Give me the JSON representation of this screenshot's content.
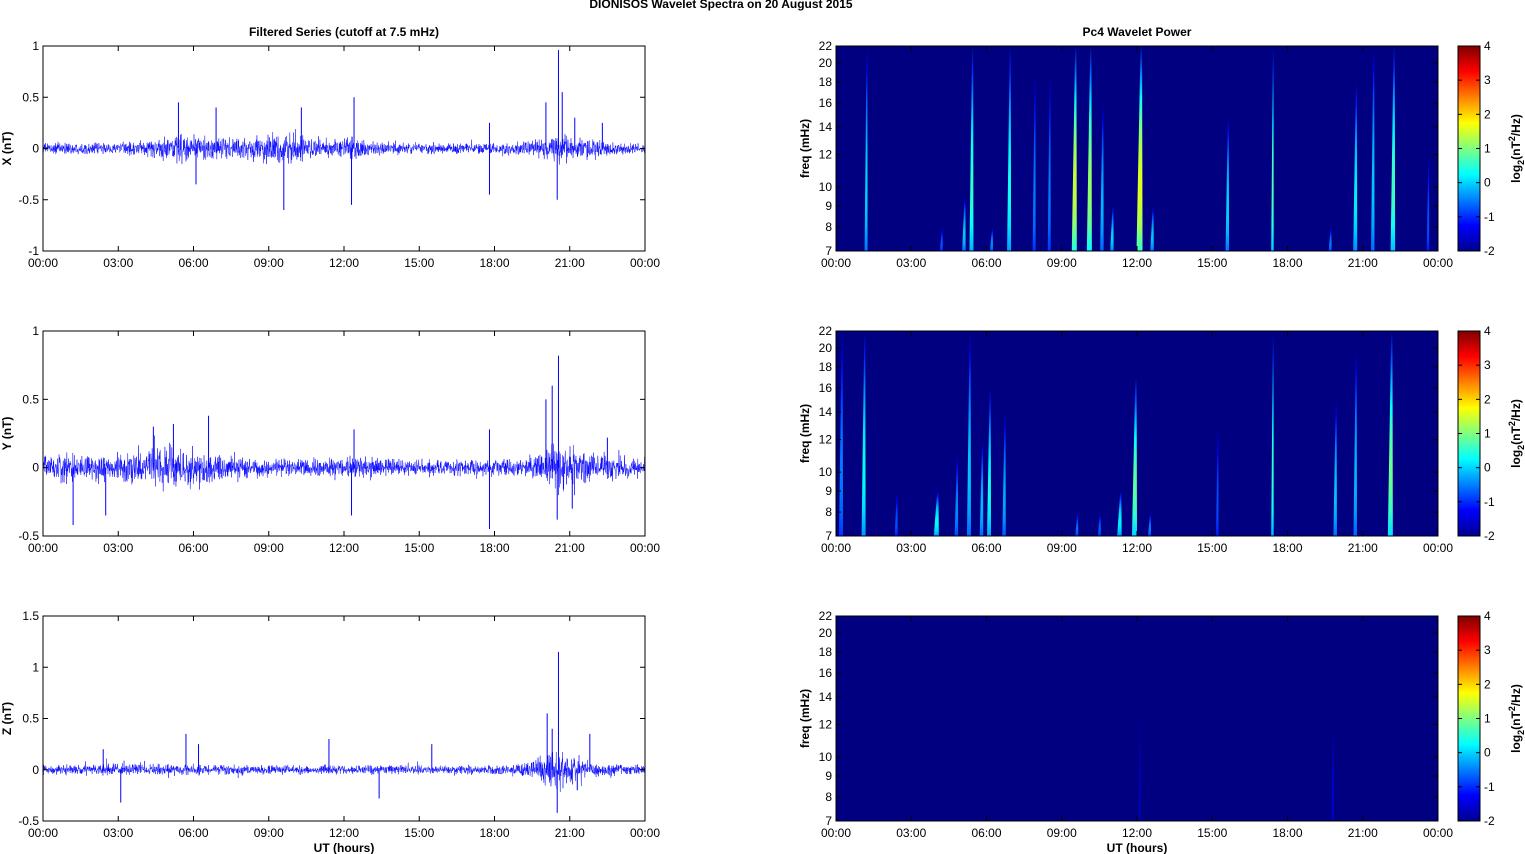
{
  "figure_title": "DIONISOS Wavelet Spectra on 20 August    2015",
  "left_title": "Filtered Series (cutoff at 7.5 mHz)",
  "right_title": "Pc4 Wavelet Power",
  "colors": {
    "trace": "#0000ff",
    "background": "#00008f",
    "axes": "#000000"
  },
  "chart_data": [
    {
      "type": "line",
      "panel": "X",
      "ylabel": "X (nT)",
      "xlabel": "",
      "xlim": [
        0,
        24
      ],
      "ylim": [
        -1,
        1
      ],
      "yticks": [
        -1,
        -0.5,
        0,
        0.5,
        1
      ],
      "yticklabels": [
        "-1",
        "-0.5",
        "0",
        "0.5",
        "1"
      ],
      "xticklabels": [
        "00:00",
        "03:00",
        "06:00",
        "09:00",
        "12:00",
        "15:00",
        "18:00",
        "21:00",
        "00:00"
      ],
      "noise_envelope": {
        "t": [
          0,
          1,
          2,
          3,
          4,
          4.8,
          6,
          7,
          8,
          9,
          10,
          11,
          12,
          12.5,
          13,
          15,
          17,
          18,
          19,
          20,
          20.5,
          21,
          22,
          23,
          24
        ],
        "amp": [
          0.07,
          0.08,
          0.07,
          0.08,
          0.09,
          0.18,
          0.22,
          0.16,
          0.14,
          0.2,
          0.22,
          0.12,
          0.12,
          0.18,
          0.1,
          0.08,
          0.07,
          0.06,
          0.09,
          0.14,
          0.2,
          0.16,
          0.14,
          0.08,
          0.06
        ]
      },
      "spikes": [
        {
          "t": 5.4,
          "v": 0.45
        },
        {
          "t": 6.1,
          "v": -0.35
        },
        {
          "t": 6.9,
          "v": 0.4
        },
        {
          "t": 9.6,
          "v": -0.6
        },
        {
          "t": 10.3,
          "v": 0.4
        },
        {
          "t": 12.4,
          "v": 0.5
        },
        {
          "t": 12.3,
          "v": -0.55
        },
        {
          "t": 17.8,
          "v": 0.25
        },
        {
          "t": 17.8,
          "v": -0.45
        },
        {
          "t": 20.05,
          "v": 0.45
        },
        {
          "t": 20.55,
          "v": 0.96
        },
        {
          "t": 20.5,
          "v": -0.5
        },
        {
          "t": 20.7,
          "v": 0.55
        },
        {
          "t": 22.3,
          "v": 0.25
        },
        {
          "t": 21.2,
          "v": 0.3
        }
      ]
    },
    {
      "type": "line",
      "panel": "Y",
      "ylabel": "Y (nT)",
      "xlabel": "",
      "xlim": [
        0,
        24
      ],
      "ylim": [
        -0.5,
        1
      ],
      "yticks": [
        -0.5,
        0,
        0.5,
        1
      ],
      "yticklabels": [
        "-0.5",
        "0",
        "0.5",
        "1"
      ],
      "xticklabels": [
        "00:00",
        "03:00",
        "06:00",
        "09:00",
        "12:00",
        "15:00",
        "18:00",
        "21:00",
        "00:00"
      ],
      "noise_envelope": {
        "t": [
          0,
          1,
          2,
          3,
          4,
          5,
          6,
          7,
          8,
          9,
          10,
          11,
          12,
          13,
          14,
          15,
          16,
          17,
          18,
          19,
          20,
          20.5,
          21,
          22,
          23,
          24
        ],
        "amp": [
          0.12,
          0.14,
          0.14,
          0.15,
          0.17,
          0.2,
          0.2,
          0.16,
          0.1,
          0.09,
          0.09,
          0.09,
          0.11,
          0.1,
          0.08,
          0.08,
          0.08,
          0.09,
          0.09,
          0.08,
          0.16,
          0.25,
          0.2,
          0.15,
          0.12,
          0.1
        ]
      },
      "spikes": [
        {
          "t": 1.2,
          "v": -0.42
        },
        {
          "t": 2.5,
          "v": -0.35
        },
        {
          "t": 5.2,
          "v": 0.32
        },
        {
          "t": 6.6,
          "v": 0.38
        },
        {
          "t": 4.4,
          "v": 0.3
        },
        {
          "t": 12.3,
          "v": -0.35
        },
        {
          "t": 12.4,
          "v": 0.28
        },
        {
          "t": 17.8,
          "v": 0.28
        },
        {
          "t": 17.8,
          "v": -0.45
        },
        {
          "t": 20.05,
          "v": 0.5
        },
        {
          "t": 20.55,
          "v": 0.82
        },
        {
          "t": 20.5,
          "v": -0.38
        },
        {
          "t": 20.3,
          "v": 0.6
        },
        {
          "t": 21.1,
          "v": -0.3
        },
        {
          "t": 22.5,
          "v": 0.22
        }
      ]
    },
    {
      "type": "line",
      "panel": "Z",
      "ylabel": "Z (nT)",
      "xlabel": "UT (hours)",
      "xlim": [
        0,
        24
      ],
      "ylim": [
        -0.5,
        1.5
      ],
      "yticks": [
        -0.5,
        0,
        0.5,
        1,
        1.5
      ],
      "yticklabels": [
        "-0.5",
        "0",
        "0.5",
        "1",
        "1.5"
      ],
      "xticklabels": [
        "00:00",
        "03:00",
        "06:00",
        "09:00",
        "12:00",
        "15:00",
        "18:00",
        "21:00",
        "00:00"
      ],
      "noise_envelope": {
        "t": [
          0,
          2,
          3,
          4,
          6,
          8,
          10,
          12,
          14,
          16,
          18,
          19,
          19.5,
          20,
          20.5,
          21,
          21.5,
          22,
          23,
          24
        ],
        "amp": [
          0.06,
          0.07,
          0.09,
          0.07,
          0.07,
          0.07,
          0.06,
          0.06,
          0.06,
          0.06,
          0.06,
          0.08,
          0.12,
          0.2,
          0.28,
          0.16,
          0.12,
          0.08,
          0.07,
          0.06
        ]
      },
      "spikes": [
        {
          "t": 2.4,
          "v": 0.2
        },
        {
          "t": 3.1,
          "v": -0.32
        },
        {
          "t": 5.7,
          "v": 0.35
        },
        {
          "t": 6.2,
          "v": 0.25
        },
        {
          "t": 11.4,
          "v": 0.3
        },
        {
          "t": 13.4,
          "v": -0.28
        },
        {
          "t": 15.5,
          "v": 0.25
        },
        {
          "t": 20.1,
          "v": 0.55
        },
        {
          "t": 20.55,
          "v": 1.15
        },
        {
          "t": 20.5,
          "v": -0.42
        },
        {
          "t": 20.3,
          "v": 0.4
        },
        {
          "t": 21.8,
          "v": 0.35
        },
        {
          "t": 21.3,
          "v": -0.2
        }
      ]
    },
    {
      "type": "heatmap",
      "panel": "X",
      "ylabel": "freq (mHz)",
      "xlabel": "",
      "colorbar_label": "log2(nT^2/Hz)",
      "xlim": [
        0,
        24
      ],
      "ylim": [
        7,
        22
      ],
      "yscale": "log",
      "yticks": [
        7,
        8,
        9,
        10,
        12,
        14,
        16,
        18,
        20,
        22
      ],
      "clim": [
        -2,
        4
      ],
      "cticks": [
        -2,
        -1,
        0,
        1,
        2,
        3,
        4
      ],
      "background_value": -2,
      "xticklabels": [
        "00:00",
        "03:00",
        "06:00",
        "09:00",
        "12:00",
        "15:00",
        "18:00",
        "21:00",
        "00:00"
      ],
      "streaks": [
        {
          "t": 1.2,
          "fmax": 22,
          "peak": 0.3,
          "w": 0.06
        },
        {
          "t": 4.2,
          "fmax": 8,
          "peak": -0.6,
          "w": 0.06
        },
        {
          "t": 5.1,
          "fmax": 9.5,
          "peak": 0.2,
          "w": 0.07
        },
        {
          "t": 5.4,
          "fmax": 22,
          "peak": 0.9,
          "w": 0.08
        },
        {
          "t": 6.2,
          "fmax": 8,
          "peak": -0.2,
          "w": 0.06
        },
        {
          "t": 6.9,
          "fmax": 22,
          "peak": 0.7,
          "w": 0.08
        },
        {
          "t": 7.9,
          "fmax": 19,
          "peak": -0.3,
          "w": 0.06
        },
        {
          "t": 8.5,
          "fmax": 19,
          "peak": -0.3,
          "w": 0.06
        },
        {
          "t": 9.5,
          "fmax": 22,
          "peak": 1.9,
          "w": 0.1
        },
        {
          "t": 10.1,
          "fmax": 22,
          "peak": 1.6,
          "w": 0.1
        },
        {
          "t": 10.6,
          "fmax": 16,
          "peak": 0.1,
          "w": 0.07
        },
        {
          "t": 11.0,
          "fmax": 9,
          "peak": 0.3,
          "w": 0.07
        },
        {
          "t": 12.1,
          "fmax": 22,
          "peak": 2.1,
          "w": 0.12
        },
        {
          "t": 12.6,
          "fmax": 9,
          "peak": 0.2,
          "w": 0.07
        },
        {
          "t": 15.6,
          "fmax": 15,
          "peak": 0.3,
          "w": 0.07
        },
        {
          "t": 17.4,
          "fmax": 22,
          "peak": 1.1,
          "w": 0.05
        },
        {
          "t": 19.7,
          "fmax": 8,
          "peak": -0.3,
          "w": 0.06
        },
        {
          "t": 20.7,
          "fmax": 18,
          "peak": 0.5,
          "w": 0.08
        },
        {
          "t": 21.4,
          "fmax": 22,
          "peak": 0.2,
          "w": 0.07
        },
        {
          "t": 22.2,
          "fmax": 22,
          "peak": 1.0,
          "w": 0.09
        },
        {
          "t": 23.6,
          "fmax": 12,
          "peak": -0.6,
          "w": 0.05
        }
      ]
    },
    {
      "type": "heatmap",
      "panel": "Y",
      "ylabel": "freq (mHz)",
      "xlabel": "",
      "colorbar_label": "log2(nT^2/Hz)",
      "xlim": [
        0,
        24
      ],
      "ylim": [
        7,
        22
      ],
      "yscale": "log",
      "yticks": [
        7,
        8,
        9,
        10,
        12,
        14,
        16,
        18,
        20,
        22
      ],
      "clim": [
        -2,
        4
      ],
      "cticks": [
        -2,
        -1,
        0,
        1,
        2,
        3,
        4
      ],
      "background_value": -2,
      "xticklabels": [
        "00:00",
        "03:00",
        "06:00",
        "09:00",
        "12:00",
        "15:00",
        "18:00",
        "21:00",
        "00:00"
      ],
      "streaks": [
        {
          "t": 0.2,
          "fmax": 22,
          "peak": -0.3,
          "w": 0.08
        },
        {
          "t": 1.1,
          "fmax": 22,
          "peak": 0.6,
          "w": 0.08
        },
        {
          "t": 2.4,
          "fmax": 9,
          "peak": -0.6,
          "w": 0.06
        },
        {
          "t": 4.0,
          "fmax": 9,
          "peak": 0.6,
          "w": 0.1
        },
        {
          "t": 4.8,
          "fmax": 11,
          "peak": -0.2,
          "w": 0.07
        },
        {
          "t": 5.3,
          "fmax": 22,
          "peak": 0.2,
          "w": 0.08
        },
        {
          "t": 5.8,
          "fmax": 12,
          "peak": 0.1,
          "w": 0.07
        },
        {
          "t": 6.1,
          "fmax": 16,
          "peak": 0.7,
          "w": 0.08
        },
        {
          "t": 6.7,
          "fmax": 14,
          "peak": 0.0,
          "w": 0.07
        },
        {
          "t": 9.6,
          "fmax": 8,
          "peak": -0.4,
          "w": 0.06
        },
        {
          "t": 10.5,
          "fmax": 8,
          "peak": -0.5,
          "w": 0.06
        },
        {
          "t": 11.3,
          "fmax": 9,
          "peak": 0.5,
          "w": 0.09
        },
        {
          "t": 11.9,
          "fmax": 17,
          "peak": 1.2,
          "w": 0.1
        },
        {
          "t": 12.5,
          "fmax": 8,
          "peak": -0.3,
          "w": 0.06
        },
        {
          "t": 15.2,
          "fmax": 13,
          "peak": -0.6,
          "w": 0.05
        },
        {
          "t": 17.4,
          "fmax": 22,
          "peak": 0.9,
          "w": 0.05
        },
        {
          "t": 19.9,
          "fmax": 15,
          "peak": 0.2,
          "w": 0.07
        },
        {
          "t": 20.7,
          "fmax": 20,
          "peak": 0.1,
          "w": 0.07
        },
        {
          "t": 22.1,
          "fmax": 22,
          "peak": 1.3,
          "w": 0.1
        }
      ]
    },
    {
      "type": "heatmap",
      "panel": "Z",
      "ylabel": "freq (mHz)",
      "xlabel": "UT (hours)",
      "colorbar_label": "log2(nT^2/Hz)",
      "xlim": [
        0,
        24
      ],
      "ylim": [
        7,
        22
      ],
      "yscale": "log",
      "yticks": [
        7,
        8,
        9,
        10,
        12,
        14,
        16,
        18,
        20,
        22
      ],
      "clim": [
        -2,
        4
      ],
      "cticks": [
        -2,
        -1,
        0,
        1,
        2,
        3,
        4
      ],
      "background_value": -2,
      "xticklabels": [
        "00:00",
        "03:00",
        "06:00",
        "09:00",
        "12:00",
        "15:00",
        "18:00",
        "21:00",
        "00:00"
      ],
      "streaks": [
        {
          "t": 12.1,
          "fmax": 13,
          "peak": -1.6,
          "w": 0.05
        },
        {
          "t": 19.8,
          "fmax": 12,
          "peak": -1.4,
          "w": 0.05
        }
      ]
    }
  ]
}
